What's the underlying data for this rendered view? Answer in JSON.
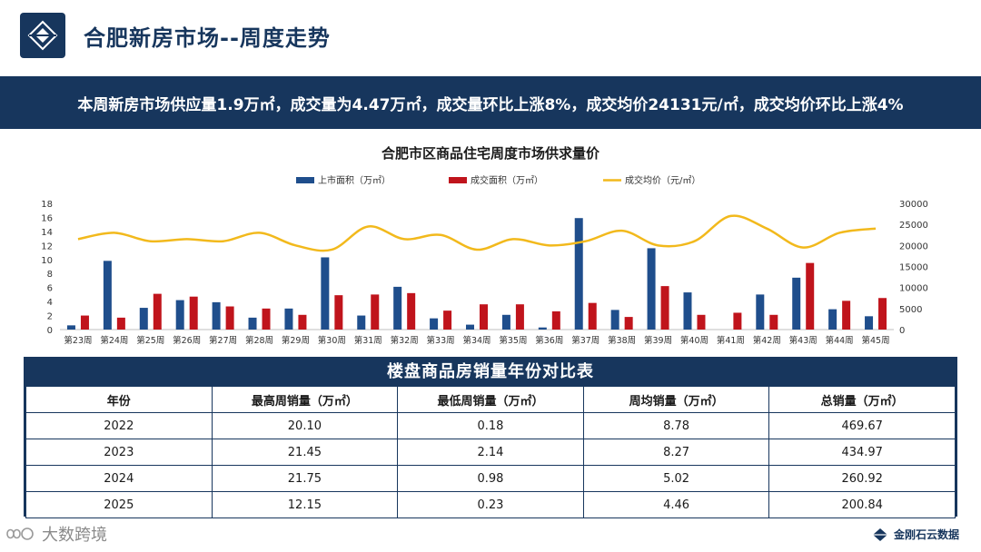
{
  "header": {
    "title": "合肥新房市场--周度走势"
  },
  "banner": {
    "text": "本周新房市场供应量1.9万㎡，成交量为4.47万㎡，成交量环比上涨8%，成交均价24131元/㎡，成交均价环比上涨4%"
  },
  "chart_data": {
    "type": "bar",
    "title": "合肥市区商品住宅周度市场供求量价",
    "categories": [
      "第23周",
      "第24周",
      "第25周",
      "第26周",
      "第27周",
      "第28周",
      "第29周",
      "第30周",
      "第31周",
      "第32周",
      "第33周",
      "第34周",
      "第35周",
      "第36周",
      "第37周",
      "第38周",
      "第39周",
      "第40周",
      "第41周",
      "第42周",
      "第43周",
      "第44周",
      "第45周"
    ],
    "series": [
      {
        "name": "上市面积（万㎡）",
        "type": "bar",
        "axis": "left",
        "color": "#1f4e8c",
        "values": [
          0.6,
          9.8,
          3.1,
          4.2,
          3.9,
          1.7,
          3.0,
          10.3,
          2.0,
          6.1,
          1.6,
          0.7,
          2.1,
          0.3,
          15.9,
          2.8,
          11.6,
          5.3,
          0,
          5.0,
          7.4,
          2.9,
          1.9
        ]
      },
      {
        "name": "成交面积（万㎡）",
        "type": "bar",
        "axis": "left",
        "color": "#c0141c",
        "values": [
          2.0,
          1.7,
          5.1,
          4.7,
          3.3,
          3.0,
          2.1,
          4.9,
          5.0,
          5.2,
          2.7,
          3.6,
          3.6,
          2.6,
          3.8,
          1.8,
          6.2,
          2.1,
          2.4,
          2.1,
          9.5,
          4.1,
          4.5
        ]
      },
      {
        "name": "成交均价（元/㎡）",
        "type": "line",
        "axis": "right",
        "color": "#f2b91c",
        "values": [
          21500,
          23000,
          21000,
          21500,
          21000,
          23000,
          20000,
          19000,
          24500,
          21500,
          22500,
          19000,
          21500,
          20000,
          21000,
          23500,
          20000,
          21000,
          27000,
          24000,
          19500,
          23000,
          24000
        ]
      }
    ],
    "y_left": {
      "min": 0,
      "max": 18,
      "ticks": [
        "0",
        "2",
        "4",
        "6",
        "8",
        "10",
        "12",
        "14",
        "16",
        "18"
      ]
    },
    "y_right": {
      "min": 0,
      "max": 30000,
      "ticks": [
        "0",
        "5000",
        "10000",
        "15000",
        "20000",
        "25000",
        "30000"
      ]
    },
    "legend_position": "top",
    "grid": false
  },
  "table": {
    "title": "楼盘商品房销量年份对比表",
    "headers": [
      "年份",
      "最高周销量（万㎡）",
      "最低周销量（万㎡）",
      "周均销量（万㎡）",
      "总销量（万㎡）"
    ],
    "rows": [
      [
        "2022",
        "20.10",
        "0.18",
        "8.78",
        "469.67"
      ],
      [
        "2023",
        "21.45",
        "2.14",
        "8.27",
        "434.97"
      ],
      [
        "2024",
        "21.75",
        "0.98",
        "5.02",
        "260.92"
      ],
      [
        "2025",
        "12.15",
        "0.23",
        "4.46",
        "200.84"
      ]
    ]
  },
  "footer": {
    "left_brand": "大数跨境",
    "right_brand": "金刚石云数据"
  },
  "colors": {
    "navy": "#17365d",
    "bar_supply": "#1f4e8c",
    "bar_deal": "#c0141c",
    "line_price": "#f2b91c"
  }
}
